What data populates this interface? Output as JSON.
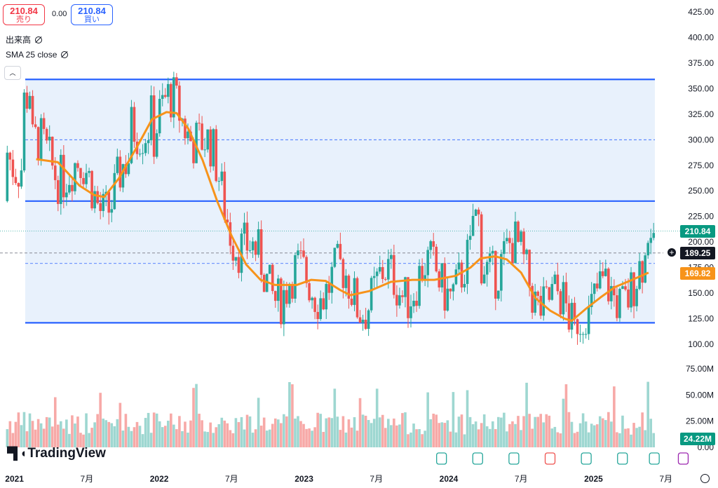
{
  "header": {
    "sell_price": "210.84",
    "sell_label": "売り",
    "spread": "0.00",
    "buy_price": "210.84",
    "buy_label": "買い"
  },
  "legends": {
    "volume_label": "出来高",
    "sma_label": "SMA 25 close"
  },
  "brand": "TradingView",
  "price_tags": {
    "last": "210.84",
    "crosshair": "189.25",
    "sma": "169.82",
    "volume": "24.22M"
  },
  "colors": {
    "up": "#26a69a",
    "down": "#ef5350",
    "sma": "#f7931a",
    "channel": "#2962ff",
    "channel_fill": "#e8f1fc"
  },
  "icons": [
    "eye-off-icon",
    "chevron-up-icon",
    "earnings-icon",
    "dividend-icon",
    "settings-icon",
    "crosshair-plus-icon"
  ],
  "chart_data": {
    "type": "candlestick",
    "x_ticks": [
      "2021",
      "7月",
      "2022",
      "7月",
      "2023",
      "7月",
      "2024",
      "7月",
      "2025",
      "7月"
    ],
    "price_ticks": [
      "425.00",
      "400.00",
      "375.00",
      "350.00",
      "325.00",
      "300.00",
      "275.00",
      "250.00",
      "225.00",
      "200.00",
      "175.00",
      "150.00",
      "125.00",
      "100.00"
    ],
    "volume_ticks": [
      "75.00M",
      "50.00M",
      "25.00M",
      "0.00"
    ],
    "ylim": [
      100,
      425
    ],
    "channel": {
      "top": 359,
      "mid_dashed": 300,
      "middle": 240,
      "lower_dashed": 179,
      "bottom": 121
    },
    "sma_line": [
      [
        2021.15,
        281
      ],
      [
        2021.3,
        278
      ],
      [
        2021.45,
        255
      ],
      [
        2021.55,
        246
      ],
      [
        2021.62,
        244
      ],
      [
        2021.72,
        262
      ],
      [
        2021.85,
        294
      ],
      [
        2021.95,
        320
      ],
      [
        2022.05,
        327
      ],
      [
        2022.12,
        326
      ],
      [
        2022.2,
        311
      ],
      [
        2022.3,
        280
      ],
      [
        2022.4,
        240
      ],
      [
        2022.5,
        206
      ],
      [
        2022.6,
        178
      ],
      [
        2022.7,
        163
      ],
      [
        2022.8,
        158
      ],
      [
        2022.95,
        158
      ],
      [
        2023.05,
        163
      ],
      [
        2023.15,
        162
      ],
      [
        2023.25,
        153
      ],
      [
        2023.32,
        148
      ],
      [
        2023.45,
        152
      ],
      [
        2023.6,
        161
      ],
      [
        2023.75,
        163
      ],
      [
        2023.9,
        163
      ],
      [
        2024.05,
        167
      ],
      [
        2024.15,
        175
      ],
      [
        2024.22,
        184
      ],
      [
        2024.32,
        186
      ],
      [
        2024.4,
        183
      ],
      [
        2024.5,
        170
      ],
      [
        2024.6,
        145
      ],
      [
        2024.7,
        133
      ],
      [
        2024.8,
        125
      ],
      [
        2024.85,
        123
      ],
      [
        2024.95,
        135
      ],
      [
        2025.05,
        146
      ],
      [
        2025.15,
        156
      ],
      [
        2025.25,
        162
      ],
      [
        2025.38,
        170
      ]
    ],
    "last_price": 210.84,
    "sma_last": 169.82,
    "crosshair_price": 189.25,
    "volume_last_m": 24.22
  }
}
